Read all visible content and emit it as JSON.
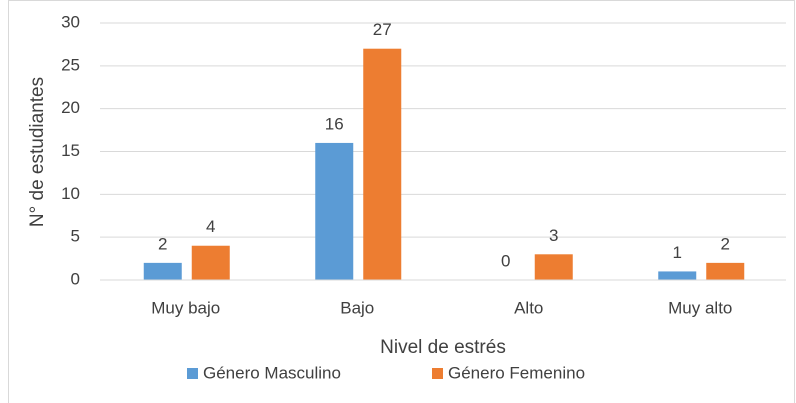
{
  "chart_data": {
    "type": "bar",
    "categories": [
      "Muy bajo",
      "Bajo",
      "Alto",
      "Muy alto"
    ],
    "series": [
      {
        "name": "Género Masculino",
        "color": "#5b9bd5",
        "values": [
          2,
          16,
          0,
          1
        ]
      },
      {
        "name": "Género Femenino",
        "color": "#ed7d31",
        "values": [
          4,
          27,
          3,
          2
        ]
      }
    ],
    "xlabel": "Nivel de estrés",
    "ylabel": "N° de estudiantes",
    "ylim": [
      0,
      30
    ],
    "yticks": [
      0,
      5,
      10,
      15,
      20,
      25,
      30
    ],
    "grid": true,
    "legend": "bottom"
  }
}
